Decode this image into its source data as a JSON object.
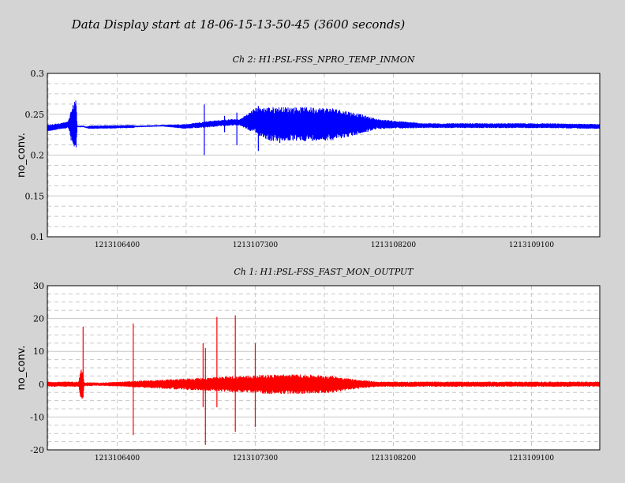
{
  "title": "Data Display start at 18-06-15-13-50-45 (3600 seconds)",
  "colors": {
    "background": "#d4d4d4",
    "plot_bg": "#ffffff",
    "grid": "#c8c8c8",
    "ch2": "#0000ff",
    "ch1": "#ff0000"
  },
  "chart_data": [
    {
      "type": "line",
      "title": "Ch 2: H1:PSL-FSS_NPRO_TEMP_INMON",
      "ylabel": "no_conv.",
      "xlabel": "",
      "xlim": [
        1213105945,
        1213109545
      ],
      "ylim": [
        0.1,
        0.3
      ],
      "yticks": [
        0.1,
        0.15,
        0.2,
        0.25,
        0.3
      ],
      "ytick_labels": [
        "0.1",
        "0.15",
        "0.2",
        "0.25",
        "0.3"
      ],
      "xticks": [
        1213106400,
        1213107300,
        1213108200,
        1213109100
      ],
      "xtick_labels": [
        "1213106400",
        "1213107300",
        "1213108200",
        "1213109100"
      ],
      "grid": true,
      "series": [
        {
          "color": "#0000ff",
          "x": [
            1213105945,
            1213106080,
            1213106130,
            1213106140,
            1213106180,
            1213106200,
            1213106220,
            1213106500,
            1213106520,
            1213106700,
            1213106850,
            1213107000,
            1213107140,
            1213107200,
            1213107300,
            1213107400,
            1213107600,
            1213107800,
            1213107950,
            1213108100,
            1213108400,
            1213108800,
            1213109200,
            1213109545
          ],
          "y": [
            0.233,
            0.237,
            0.237,
            0.235,
            0.235,
            0.234,
            0.234,
            0.235,
            0.235,
            0.236,
            0.235,
            0.238,
            0.24,
            0.24,
            0.242,
            0.238,
            0.238,
            0.238,
            0.238,
            0.238,
            0.236,
            0.236,
            0.236,
            0.235
          ],
          "noise": [
            0.004,
            0.004,
            0.037,
            0.001,
            0.001,
            0.001,
            0.002,
            0.002,
            0.001,
            0.001,
            0.003,
            0.004,
            0.004,
            0.004,
            0.016,
            0.021,
            0.021,
            0.02,
            0.014,
            0.006,
            0.003,
            0.003,
            0.003,
            0.003
          ],
          "spikes": [
            {
              "x": 1213106100,
              "min": 0.218,
              "max": 0.25
            },
            {
              "x": 1213106968,
              "min": 0.2,
              "max": 0.262
            },
            {
              "x": 1213107100,
              "min": 0.228,
              "max": 0.248
            },
            {
              "x": 1213107180,
              "min": 0.212,
              "max": 0.252
            },
            {
              "x": 1213107320,
              "min": 0.205,
              "max": 0.26
            },
            {
              "x": 1213107460,
              "min": 0.215,
              "max": 0.245
            }
          ]
        }
      ]
    },
    {
      "type": "line",
      "title": "Ch 1: H1:PSL-FSS_FAST_MON_OUTPUT",
      "ylabel": "no_conv.",
      "xlabel": "",
      "xlim": [
        1213105945,
        1213109545
      ],
      "ylim": [
        -20,
        30
      ],
      "yticks": [
        -20,
        -10,
        0,
        10,
        20,
        30
      ],
      "ytick_labels": [
        "-20",
        "-10",
        "0",
        "10",
        "20",
        "30"
      ],
      "xticks": [
        1213106400,
        1213107300,
        1213108200,
        1213109100
      ],
      "xtick_labels": [
        "1213106400",
        "1213107300",
        "1213108200",
        "1213109100"
      ],
      "grid": true,
      "series": [
        {
          "color": "#ff0000",
          "x": [
            1213105945,
            1213106150,
            1213106160,
            1213106175,
            1213106185,
            1213106300,
            1213107400,
            1213107600,
            1213107800,
            1213107950,
            1213108100,
            1213109545
          ],
          "y": [
            0,
            0,
            0,
            0,
            0,
            0,
            0,
            0,
            0,
            0,
            0,
            0
          ],
          "noise": [
            0.8,
            0.8,
            4.5,
            4.5,
            0.6,
            0.5,
            3.0,
            3.0,
            2.6,
            1.5,
            0.8,
            0.8
          ],
          "spikes": [
            {
              "x": 1213106178,
              "min": -4,
              "max": 17.5
            },
            {
              "x": 1213106505,
              "min": -15.5,
              "max": 18.5
            },
            {
              "x": 1213106960,
              "min": -7,
              "max": 12.5
            },
            {
              "x": 1213106975,
              "min": -18.5,
              "max": 11
            },
            {
              "x": 1213107050,
              "min": -7,
              "max": 20.5
            },
            {
              "x": 1213107170,
              "min": -14.5,
              "max": 21
            },
            {
              "x": 1213107300,
              "min": -13,
              "max": 12.5
            }
          ]
        }
      ]
    }
  ]
}
